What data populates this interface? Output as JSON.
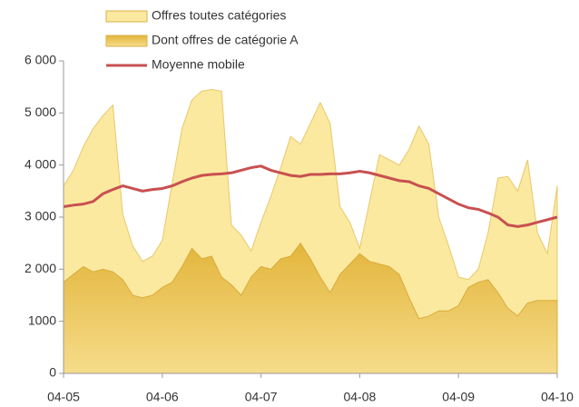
{
  "chart_data": {
    "type": "area",
    "categories": [
      "04-05",
      null,
      null,
      null,
      null,
      null,
      null,
      null,
      null,
      null,
      "04-06",
      null,
      null,
      null,
      null,
      null,
      null,
      null,
      null,
      null,
      "04-07",
      null,
      null,
      null,
      null,
      null,
      null,
      null,
      null,
      null,
      "04-08",
      null,
      null,
      null,
      null,
      null,
      null,
      null,
      null,
      null,
      "04-09",
      null,
      null,
      null,
      null,
      null,
      null,
      null,
      null,
      null,
      "04-10"
    ],
    "series": [
      {
        "name": "Offres toutes catégories",
        "color": "#fbe9a0",
        "kind": "area",
        "values": [
          3600,
          3900,
          4350,
          4700,
          4950,
          5150,
          3050,
          2450,
          2150,
          2250,
          2550,
          3650,
          4700,
          5250,
          5420,
          5450,
          5420,
          2850,
          2650,
          2350,
          2900,
          3400,
          3950,
          4550,
          4400,
          4800,
          5200,
          4800,
          3200,
          2900,
          2400,
          3300,
          4200,
          4100,
          4000,
          4300,
          4750,
          4400,
          3000,
          2450,
          1850,
          1800,
          2000,
          2700,
          3750,
          3780,
          3500,
          4100,
          2700,
          2300,
          3600
        ]
      },
      {
        "name": "Dont offres de catégorie A",
        "color": "#e8c050",
        "kind": "area",
        "values": [
          1750,
          1900,
          2050,
          1950,
          2000,
          1950,
          1800,
          1500,
          1450,
          1500,
          1650,
          1750,
          2050,
          2400,
          2200,
          2250,
          1850,
          1700,
          1500,
          1850,
          2050,
          2000,
          2200,
          2250,
          2500,
          2200,
          1850,
          1550,
          1900,
          2100,
          2300,
          2150,
          2100,
          2050,
          1900,
          1450,
          1050,
          1100,
          1200,
          1200,
          1300,
          1650,
          1750,
          1800,
          1550,
          1250,
          1100,
          1350,
          1400,
          1400,
          1400
        ]
      },
      {
        "name": "Moyenne mobile",
        "color": "#c85050",
        "kind": "line",
        "values": [
          3200,
          3230,
          3250,
          3300,
          3450,
          3530,
          3600,
          3550,
          3500,
          3530,
          3550,
          3600,
          3680,
          3750,
          3800,
          3820,
          3830,
          3850,
          3900,
          3950,
          3980,
          3900,
          3850,
          3800,
          3780,
          3820,
          3820,
          3830,
          3830,
          3850,
          3880,
          3850,
          3800,
          3750,
          3700,
          3680,
          3600,
          3550,
          3450,
          3350,
          3250,
          3180,
          3150,
          3080,
          3000,
          2850,
          2820,
          2850,
          2900,
          2950,
          3000
        ]
      }
    ],
    "ylim": [
      0,
      6000
    ],
    "yticks": [
      0,
      {
        "value": 1000,
        "label": "1000"
      },
      {
        "value": 2000,
        "label": "2 000"
      },
      {
        "value": 3000,
        "label": "3 000"
      },
      {
        "value": 4000,
        "label": "4 000"
      },
      {
        "value": 5000,
        "label": "5 000"
      },
      {
        "value": 6000,
        "label": "6 000"
      }
    ]
  }
}
